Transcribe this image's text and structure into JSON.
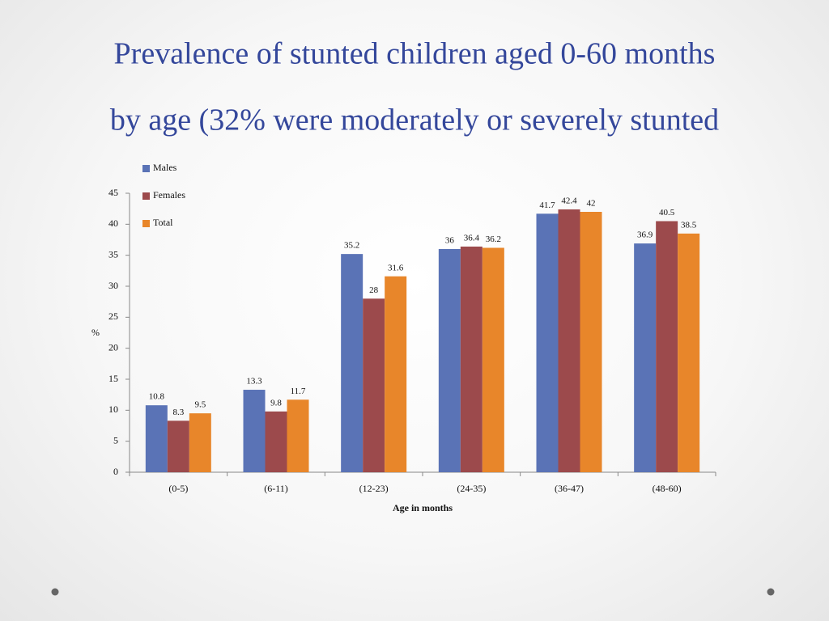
{
  "chart_data": {
    "type": "bar",
    "title": [
      "Prevalence of stunted children aged 0-60 months",
      "by age (32% were moderately or severely stunted"
    ],
    "x_label": "Age in months",
    "y_label": "%",
    "categories": [
      "(0-5)",
      "(6-11)",
      "(12-23)",
      "(24-35)",
      "(36-47)",
      "(48-60)"
    ],
    "series": [
      {
        "name": "Males",
        "color": "#5a73b6",
        "values": [
          10.8,
          13.3,
          35.2,
          36,
          41.7,
          36.9
        ]
      },
      {
        "name": "Females",
        "color": "#9c4a4c",
        "values": [
          8.3,
          9.8,
          28,
          36.4,
          42.4,
          40.5
        ]
      },
      {
        "name": "Total",
        "color": "#e8862a",
        "values": [
          9.5,
          11.7,
          31.6,
          36.2,
          42,
          38.5
        ]
      }
    ],
    "ylim": [
      0,
      45
    ],
    "yticks": [
      0,
      5,
      10,
      15,
      20,
      25,
      30,
      35,
      40,
      45
    ],
    "legend": "top-left",
    "data_labels": true
  }
}
